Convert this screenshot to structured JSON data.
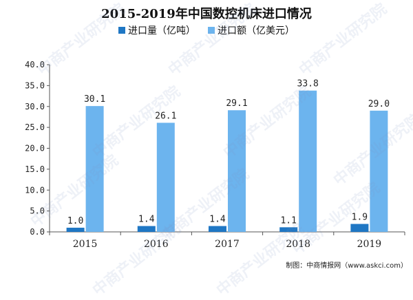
{
  "chart_data": {
    "type": "bar",
    "title": "2015-2019年中国数控机床进口情况",
    "categories": [
      "2015",
      "2016",
      "2017",
      "2018",
      "2019"
    ],
    "series": [
      {
        "name": "进口量（亿吨）",
        "color": "#1f77c4",
        "values": [
          1.0,
          1.4,
          1.4,
          1.1,
          1.9
        ]
      },
      {
        "name": "进口额（亿美元）",
        "color": "#6cb4ee",
        "values": [
          30.1,
          26.1,
          29.1,
          33.8,
          29.0
        ]
      }
    ],
    "ylim": [
      0,
      40
    ],
    "yticks": [
      "0.0",
      "5.0",
      "10.0",
      "15.0",
      "20.0",
      "25.0",
      "30.0",
      "35.0",
      "40.0"
    ],
    "xlabel": "",
    "ylabel": "",
    "legend_position": "top",
    "grid": false
  },
  "source": "制图：中商情报网（www.askci.com）",
  "watermark": "中商产业研究院"
}
